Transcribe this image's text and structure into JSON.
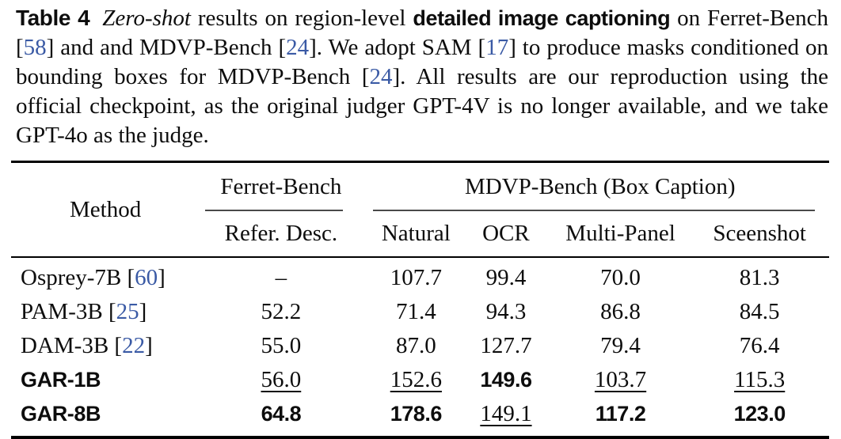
{
  "page": {
    "background": "#ffffff",
    "text_color": "#0d0d0d",
    "citation_color": "#3a5aa5"
  },
  "caption": {
    "segments": [
      {
        "text": "Table 4",
        "style": "tag"
      },
      {
        "text": "Zero-shot",
        "style": "italic"
      },
      {
        "text": " results on region-level ",
        "style": "plain"
      },
      {
        "text": "detailed image captioning",
        "style": "boldsans"
      },
      {
        "text": " on Ferret-Bench [",
        "style": "plain"
      },
      {
        "text": "58",
        "style": "cite"
      },
      {
        "text": "] and and MDVP-Bench [",
        "style": "plain"
      },
      {
        "text": "24",
        "style": "cite"
      },
      {
        "text": "]. We adopt SAM [",
        "style": "plain"
      },
      {
        "text": "17",
        "style": "cite"
      },
      {
        "text": "] to produce masks conditioned on bounding boxes for MDVP-Bench [",
        "style": "plain"
      },
      {
        "text": "24",
        "style": "cite"
      },
      {
        "text": "]. All results are our reproduction using the official checkpoint, as the original judger GPT-4V is no longer available, and we take GPT-4o as the judge.",
        "style": "plain"
      }
    ]
  },
  "table": {
    "method_header": "Method",
    "groups": [
      {
        "label": "Ferret-Bench",
        "columns": [
          "Refer. Desc."
        ]
      },
      {
        "label": "MDVP-Bench (Box Caption)",
        "columns": [
          "Natural",
          "OCR",
          "Multi-Panel",
          "Sceenshot"
        ]
      }
    ],
    "rows": [
      {
        "method_segments": [
          {
            "text": "Osprey-7B [",
            "style": "plain"
          },
          {
            "text": "60",
            "style": "cite"
          },
          {
            "text": "]",
            "style": "plain"
          }
        ],
        "values": [
          {
            "text": "–",
            "style": "plain"
          },
          {
            "text": "107.7",
            "style": "plain"
          },
          {
            "text": "99.4",
            "style": "plain"
          },
          {
            "text": "70.0",
            "style": "plain"
          },
          {
            "text": "81.3",
            "style": "plain"
          }
        ]
      },
      {
        "method_segments": [
          {
            "text": "PAM-3B [",
            "style": "plain"
          },
          {
            "text": "25",
            "style": "cite"
          },
          {
            "text": "]",
            "style": "plain"
          }
        ],
        "values": [
          {
            "text": "52.2",
            "style": "plain"
          },
          {
            "text": "71.4",
            "style": "plain"
          },
          {
            "text": "94.3",
            "style": "plain"
          },
          {
            "text": "86.8",
            "style": "plain"
          },
          {
            "text": "84.5",
            "style": "plain"
          }
        ]
      },
      {
        "method_segments": [
          {
            "text": "DAM-3B [",
            "style": "plain"
          },
          {
            "text": "22",
            "style": "cite"
          },
          {
            "text": "]",
            "style": "plain"
          }
        ],
        "values": [
          {
            "text": "55.0",
            "style": "plain"
          },
          {
            "text": "87.0",
            "style": "plain"
          },
          {
            "text": "127.7",
            "style": "plain"
          },
          {
            "text": "79.4",
            "style": "plain"
          },
          {
            "text": "76.4",
            "style": "plain"
          }
        ]
      },
      {
        "method_segments": [
          {
            "text": "GAR-1B",
            "style": "boldsans"
          }
        ],
        "values": [
          {
            "text": "56.0",
            "style": "underline"
          },
          {
            "text": "152.6",
            "style": "underline"
          },
          {
            "text": "149.6",
            "style": "bold"
          },
          {
            "text": "103.7",
            "style": "underline"
          },
          {
            "text": "115.3",
            "style": "underline"
          }
        ]
      },
      {
        "method_segments": [
          {
            "text": "GAR-8B",
            "style": "boldsans"
          }
        ],
        "values": [
          {
            "text": "64.8",
            "style": "bold"
          },
          {
            "text": "178.6",
            "style": "bold"
          },
          {
            "text": "149.1",
            "style": "underline"
          },
          {
            "text": "117.2",
            "style": "bold"
          },
          {
            "text": "123.0",
            "style": "bold"
          }
        ]
      }
    ]
  }
}
